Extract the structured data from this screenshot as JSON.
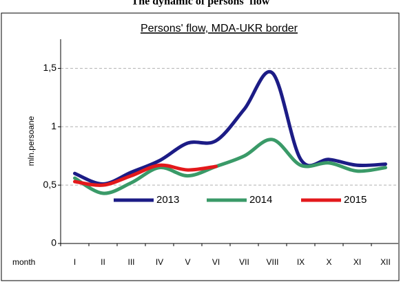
{
  "heading": "The dynamic of persons' flow",
  "chart_data": {
    "type": "line",
    "title": "Persons' flow, MDA-UKR border",
    "y_label": "mln.persoane",
    "x_label": "month",
    "categories": [
      "I",
      "II",
      "III",
      "IV",
      "V",
      "VI",
      "VII",
      "VIII",
      "IX",
      "X",
      "XI",
      "XII"
    ],
    "series": [
      {
        "name": "2013",
        "color": "#1c1c86",
        "values": [
          0.6,
          0.51,
          0.61,
          0.71,
          0.86,
          0.88,
          1.15,
          1.46,
          0.72,
          0.72,
          0.67,
          0.68
        ]
      },
      {
        "name": "2014",
        "color": "#3a9a68",
        "values": [
          0.56,
          0.43,
          0.52,
          0.65,
          0.58,
          0.66,
          0.75,
          0.89,
          0.67,
          0.69,
          0.62,
          0.65
        ]
      },
      {
        "name": "2015",
        "color": "#e3191c",
        "values": [
          0.53,
          0.5,
          0.58,
          0.67,
          0.63,
          0.66,
          null,
          null,
          null,
          null,
          null,
          null
        ]
      }
    ],
    "ylim": [
      0,
      1.75
    ],
    "yticks": [
      0,
      {
        "value": 0.5,
        "label": "0,5"
      },
      1,
      {
        "value": 1.5,
        "label": "1,5"
      }
    ],
    "grid": true
  }
}
